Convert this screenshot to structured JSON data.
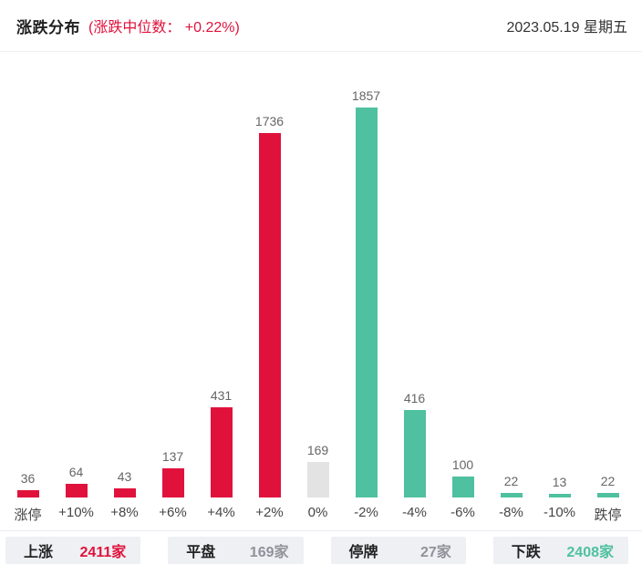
{
  "colors": {
    "up": "#e0123c",
    "down": "#4fc0a0",
    "flat": "#e3e3e3"
  },
  "header": {
    "title": "涨跌分布",
    "subtitle": "(涨跌中位数： +0.22%)",
    "date": "2023.05.19 星期五"
  },
  "chart_data": {
    "type": "bar",
    "title": "涨跌分布",
    "categories": [
      "涨停",
      "+10%",
      "+8%",
      "+6%",
      "+4%",
      "+2%",
      "0%",
      "-2%",
      "-4%",
      "-6%",
      "-8%",
      "-10%",
      "跌停"
    ],
    "values": [
      36,
      64,
      43,
      137,
      431,
      1736,
      169,
      1857,
      416,
      100,
      22,
      13,
      22
    ],
    "bar_colors": [
      "up",
      "up",
      "up",
      "up",
      "up",
      "up",
      "flat",
      "down",
      "down",
      "down",
      "down",
      "down",
      "down"
    ],
    "xlabel": "",
    "ylabel": "",
    "ylim": [
      0,
      1857
    ],
    "grid": false,
    "legend_position": "none",
    "value_labels_shown": true
  },
  "summary": {
    "items": [
      {
        "label": "上涨",
        "value": "2411家",
        "color": "up"
      },
      {
        "label": "平盘",
        "value": "169家",
        "color": "muted"
      },
      {
        "label": "停牌",
        "value": "27家",
        "color": "muted"
      },
      {
        "label": "下跌",
        "value": "2408家",
        "color": "down"
      }
    ]
  }
}
